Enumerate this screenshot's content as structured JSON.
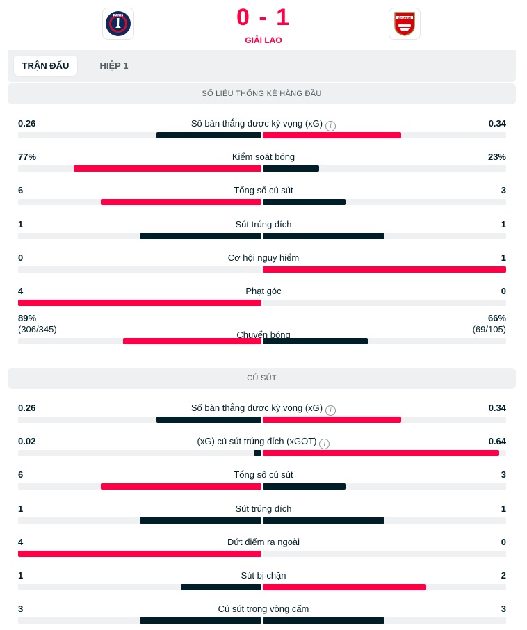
{
  "match": {
    "score": "0 - 1",
    "status": "GIẢI LAO",
    "home_logo_text": "PARIS",
    "away_logo_text": "Arsenal"
  },
  "tabs": [
    {
      "label": "TRẬN ĐẤU",
      "active": true
    },
    {
      "label": "HIỆP 1",
      "active": false
    }
  ],
  "sections": [
    {
      "title": "SỐ LIỆU THỐNG KÊ HÀNG ĐẦU",
      "stats": [
        {
          "label": "Số bàn thắng được kỳ vọng (xG)",
          "info": true,
          "home": "0.26",
          "away": "0.34",
          "home_share": 0.43,
          "away_share": 0.57,
          "home_color": "trail",
          "away_color": "lead"
        },
        {
          "label": "Kiểm soát bóng",
          "info": false,
          "home": "77%",
          "away": "23%",
          "home_share": 0.77,
          "away_share": 0.23,
          "home_color": "lead",
          "away_color": "trail"
        },
        {
          "label": "Tổng số cú sút",
          "info": false,
          "home": "6",
          "away": "3",
          "home_share": 0.66,
          "away_share": 0.34,
          "home_color": "lead",
          "away_color": "trail"
        },
        {
          "label": "Sút trúng đích",
          "info": false,
          "home": "1",
          "away": "1",
          "home_share": 0.5,
          "away_share": 0.5,
          "home_color": "trail",
          "away_color": "trail"
        },
        {
          "label": "Cơ hội nguy hiểm",
          "info": false,
          "home": "0",
          "away": "1",
          "home_share": 0,
          "away_share": 1,
          "home_color": "trail",
          "away_color": "lead"
        },
        {
          "label": "Phạt góc",
          "info": false,
          "home": "4",
          "away": "0",
          "home_share": 1,
          "away_share": 0,
          "home_color": "lead",
          "away_color": "trail"
        },
        {
          "label": "Chuyển bóng",
          "info": false,
          "home": "89%",
          "away": "66%",
          "home_sub": "(306/345)",
          "away_sub": "(69/105)",
          "home_share": 0.57,
          "away_share": 0.43,
          "home_color": "lead",
          "away_color": "trail",
          "tall": true
        }
      ]
    },
    {
      "title": "CÚ SÚT",
      "stats": [
        {
          "label": "Số bàn thắng được kỳ vọng (xG)",
          "info": true,
          "home": "0.26",
          "away": "0.34",
          "home_share": 0.43,
          "away_share": 0.57,
          "home_color": "trail",
          "away_color": "lead"
        },
        {
          "label": "(xG) cú sút trúng đích (xGOT)",
          "info": true,
          "home": "0.02",
          "away": "0.64",
          "home_share": 0.03,
          "away_share": 0.97,
          "home_color": "trail",
          "away_color": "lead"
        },
        {
          "label": "Tổng số cú sút",
          "info": false,
          "home": "6",
          "away": "3",
          "home_share": 0.66,
          "away_share": 0.34,
          "home_color": "lead",
          "away_color": "trail"
        },
        {
          "label": "Sút trúng đích",
          "info": false,
          "home": "1",
          "away": "1",
          "home_share": 0.5,
          "away_share": 0.5,
          "home_color": "trail",
          "away_color": "trail"
        },
        {
          "label": "Dứt điểm ra ngoài",
          "info": false,
          "home": "4",
          "away": "0",
          "home_share": 1,
          "away_share": 0,
          "home_color": "lead",
          "away_color": "trail"
        },
        {
          "label": "Sút bị chặn",
          "info": false,
          "home": "1",
          "away": "2",
          "home_share": 0.33,
          "away_share": 0.67,
          "home_color": "trail",
          "away_color": "lead"
        },
        {
          "label": "Cú sút trong vòng cấm",
          "info": false,
          "home": "3",
          "away": "3",
          "home_share": 0.5,
          "away_share": 0.5,
          "home_color": "trail",
          "away_color": "trail"
        }
      ]
    }
  ]
}
